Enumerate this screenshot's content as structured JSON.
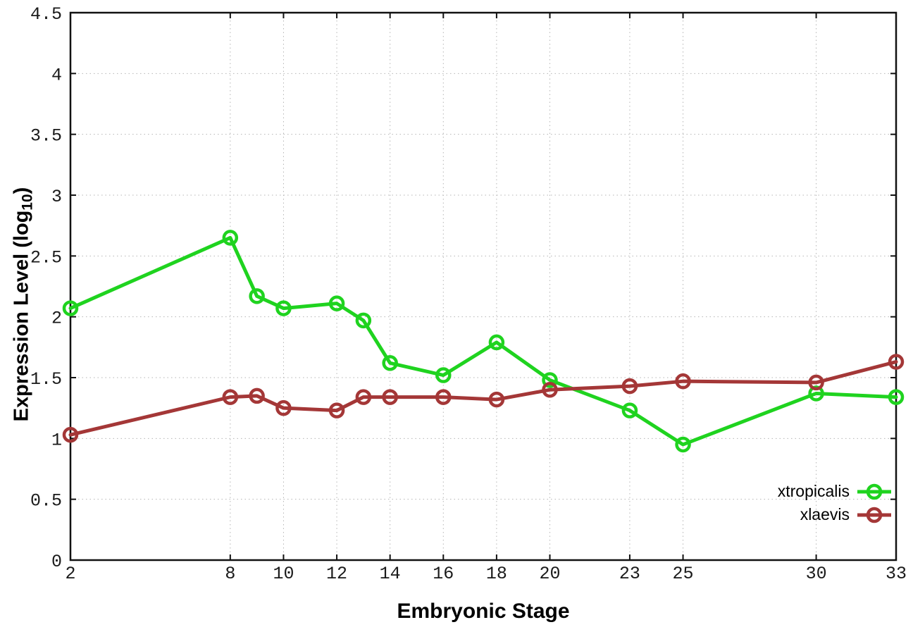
{
  "figure": {
    "xlabel": "Embryonic Stage",
    "ylabel_prefix": "Expression Level (log",
    "ylabel_sub": "10",
    "ylabel_suffix": ")"
  },
  "chart_data": {
    "type": "line",
    "title": "",
    "xlabel": "Embryonic Stage",
    "ylabel": "Expression Level (log10)",
    "x": [
      2,
      8,
      9,
      10,
      12,
      13,
      14,
      16,
      18,
      20,
      23,
      25,
      30,
      33
    ],
    "x_ticks": [
      2,
      8,
      10,
      12,
      14,
      16,
      18,
      20,
      23,
      25,
      30,
      33
    ],
    "y_ticks": [
      0,
      0.5,
      1,
      1.5,
      2,
      2.5,
      3,
      3.5,
      4,
      4.5
    ],
    "xlim": [
      2,
      33
    ],
    "ylim": [
      0,
      4.5
    ],
    "grid": true,
    "legend_position": "bottom-right",
    "marker": "open-circle",
    "series": [
      {
        "name": "xtropicalis",
        "color": "#1fd31f",
        "values": [
          2.07,
          2.65,
          2.17,
          2.07,
          2.11,
          1.97,
          1.62,
          1.52,
          1.79,
          1.48,
          1.23,
          0.95,
          1.37,
          1.34
        ]
      },
      {
        "name": "xlaevis",
        "color": "#a43737",
        "values": [
          1.03,
          1.34,
          1.35,
          1.25,
          1.23,
          1.34,
          1.34,
          1.34,
          1.32,
          1.4,
          1.43,
          1.47,
          1.46,
          1.63
        ]
      }
    ]
  }
}
